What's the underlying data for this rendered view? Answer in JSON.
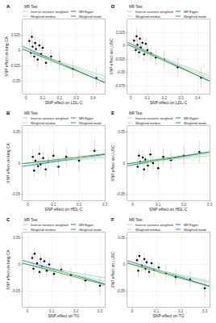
{
  "chart_data": [
    {
      "type": "scatter",
      "title": "A",
      "x_label": "SNP effect on LDL-C",
      "y_label": "SNP effect on lung CA",
      "legend_title": "MR Test",
      "x": [
        0.02,
        0.03,
        0.035,
        0.04,
        0.05,
        0.055,
        0.06,
        0.07,
        0.08,
        0.09,
        0.1,
        0.12,
        0.15,
        0.2,
        0.28,
        0.42
      ],
      "values": [
        0.015,
        -0.004,
        0.022,
        0.006,
        -0.01,
        0.012,
        0.002,
        -0.015,
        0.008,
        -0.006,
        0.004,
        -0.02,
        -0.01,
        -0.018,
        -0.03,
        -0.045
      ],
      "x_err": [
        0.004,
        0.004,
        0.005,
        0.005,
        0.006,
        0.005,
        0.006,
        0.007,
        0.007,
        0.008,
        0.008,
        0.01,
        0.01,
        0.012,
        0.015,
        0.02
      ],
      "y_err": [
        0.01,
        0.008,
        0.012,
        0.009,
        0.01,
        0.011,
        0.009,
        0.012,
        0.01,
        0.011,
        0.01,
        0.012,
        0.013,
        0.014,
        0.015,
        0.016
      ],
      "xlim": [
        -0.02,
        0.47
      ],
      "ylim": [
        -0.07,
        0.05
      ],
      "xticks": [
        0,
        0.1,
        0.2,
        0.3,
        0.4
      ],
      "yticks": [
        -0.05,
        -0.025,
        0,
        0.025
      ],
      "grid": true,
      "series": [
        {
          "name": "Inverse variance weighted",
          "color": "#a6cee3",
          "slope": -0.09,
          "intercept": 0
        },
        {
          "name": "MR Egger",
          "color": "#1f78b4",
          "slope": -0.12,
          "intercept": 0.004
        },
        {
          "name": "Weighted median",
          "color": "#b2df8a",
          "slope": -0.1,
          "intercept": 0
        },
        {
          "name": "Weighted mode",
          "color": "#33a02c",
          "slope": -0.11,
          "intercept": 0
        }
      ]
    },
    {
      "type": "scatter",
      "title": "B",
      "x_label": "SNP effect on HDL-C",
      "y_label": "SNP effect on lung CA",
      "legend_title": "MR Test",
      "x": [
        0.02,
        0.025,
        0.03,
        0.04,
        0.045,
        0.05,
        0.06,
        0.07,
        0.08,
        0.1,
        0.12,
        0.15,
        0.2,
        0.26
      ],
      "values": [
        0.01,
        -0.012,
        0.004,
        -0.005,
        0.015,
        -0.002,
        0.008,
        -0.01,
        0.003,
        0.012,
        -0.006,
        0.01,
        0.004,
        0.02
      ],
      "x_err": [
        0.004,
        0.004,
        0.005,
        0.005,
        0.006,
        0.006,
        0.007,
        0.007,
        0.008,
        0.009,
        0.01,
        0.012,
        0.014,
        0.016
      ],
      "y_err": [
        0.012,
        0.01,
        0.011,
        0.012,
        0.013,
        0.01,
        0.011,
        0.012,
        0.012,
        0.013,
        0.014,
        0.015,
        0.016,
        0.018
      ],
      "xlim": [
        -0.02,
        0.3
      ],
      "ylim": [
        -0.06,
        0.06
      ],
      "xticks": [
        0,
        0.1,
        0.2,
        0.3
      ],
      "yticks": [
        -0.05,
        0,
        0.05
      ],
      "grid": true,
      "series": [
        {
          "name": "Inverse variance weighted",
          "color": "#a6cee3",
          "slope": 0.03,
          "intercept": 0
        },
        {
          "name": "MR Egger",
          "color": "#1f78b4",
          "slope": 0.06,
          "intercept": -0.004
        },
        {
          "name": "Weighted median",
          "color": "#b2df8a",
          "slope": 0.04,
          "intercept": 0
        },
        {
          "name": "Weighted mode",
          "color": "#33a02c",
          "slope": 0.05,
          "intercept": 0
        }
      ]
    },
    {
      "type": "scatter",
      "title": "C",
      "x_label": "SNP effect on TG",
      "y_label": "SNP effect on lung CA",
      "legend_title": "MR Test",
      "x": [
        0.02,
        0.025,
        0.03,
        0.04,
        0.05,
        0.055,
        0.06,
        0.07,
        0.08,
        0.09,
        0.11,
        0.14,
        0.18,
        0.24,
        0.3
      ],
      "values": [
        0.012,
        -0.008,
        0.02,
        0.002,
        -0.014,
        0.01,
        -0.004,
        0.006,
        -0.012,
        0.0,
        -0.018,
        -0.01,
        -0.02,
        -0.03,
        -0.04
      ],
      "x_err": [
        0.004,
        0.004,
        0.005,
        0.005,
        0.006,
        0.006,
        0.006,
        0.007,
        0.008,
        0.008,
        0.009,
        0.011,
        0.013,
        0.015,
        0.018
      ],
      "y_err": [
        0.011,
        0.01,
        0.012,
        0.011,
        0.012,
        0.01,
        0.011,
        0.012,
        0.012,
        0.013,
        0.013,
        0.014,
        0.015,
        0.016,
        0.018
      ],
      "xlim": [
        -0.02,
        0.32
      ],
      "ylim": [
        -0.08,
        0.06
      ],
      "xticks": [
        0,
        0.1,
        0.2,
        0.3
      ],
      "yticks": [
        -0.05,
        0,
        0.05
      ],
      "grid": true,
      "series": [
        {
          "name": "Inverse variance weighted",
          "color": "#a6cee3",
          "slope": -0.08,
          "intercept": 0
        },
        {
          "name": "MR Egger",
          "color": "#1f78b4",
          "slope": -0.13,
          "intercept": 0.005
        },
        {
          "name": "Weighted median",
          "color": "#b2df8a",
          "slope": -0.1,
          "intercept": 0
        },
        {
          "name": "Weighted mode",
          "color": "#33a02c",
          "slope": -0.12,
          "intercept": 0
        }
      ]
    },
    {
      "type": "scatter",
      "title": "D",
      "x_label": "SNP effect on LDL-C",
      "y_label": "SNP effect on LUSC",
      "legend_title": "MR Test",
      "x": [
        0.02,
        0.03,
        0.035,
        0.04,
        0.05,
        0.055,
        0.06,
        0.07,
        0.08,
        0.09,
        0.1,
        0.12,
        0.15,
        0.2,
        0.28,
        0.42
      ],
      "values": [
        0.01,
        -0.008,
        0.018,
        0.002,
        -0.012,
        0.014,
        -0.003,
        0.006,
        -0.016,
        0.004,
        -0.008,
        -0.014,
        -0.022,
        -0.025,
        -0.04,
        -0.06
      ],
      "x_err": [
        0.004,
        0.004,
        0.005,
        0.005,
        0.006,
        0.005,
        0.006,
        0.007,
        0.007,
        0.008,
        0.008,
        0.01,
        0.01,
        0.012,
        0.015,
        0.02
      ],
      "y_err": [
        0.012,
        0.01,
        0.013,
        0.011,
        0.012,
        0.013,
        0.011,
        0.012,
        0.013,
        0.012,
        0.012,
        0.014,
        0.015,
        0.016,
        0.018,
        0.02
      ],
      "xlim": [
        -0.02,
        0.47
      ],
      "ylim": [
        -0.09,
        0.05
      ],
      "xticks": [
        0,
        0.1,
        0.2,
        0.3,
        0.4
      ],
      "yticks": [
        -0.075,
        -0.05,
        -0.025,
        0,
        0.025
      ],
      "grid": true,
      "series": [
        {
          "name": "Inverse variance weighted",
          "color": "#a6cee3",
          "slope": -0.12,
          "intercept": 0
        },
        {
          "name": "MR Egger",
          "color": "#1f78b4",
          "slope": -0.15,
          "intercept": 0.004
        },
        {
          "name": "Weighted median",
          "color": "#b2df8a",
          "slope": -0.13,
          "intercept": 0
        },
        {
          "name": "Weighted mode",
          "color": "#33a02c",
          "slope": -0.14,
          "intercept": 0
        }
      ]
    },
    {
      "type": "scatter",
      "title": "E",
      "x_label": "SNP effect on HDL-C",
      "y_label": "SNP effect on LUSC",
      "legend_title": "MR Test",
      "x": [
        0.02,
        0.025,
        0.03,
        0.04,
        0.045,
        0.05,
        0.06,
        0.07,
        0.08,
        0.1,
        0.12,
        0.15,
        0.2,
        0.26
      ],
      "values": [
        -0.006,
        0.012,
        0.002,
        0.009,
        -0.01,
        0.006,
        -0.004,
        0.014,
        0.0,
        -0.008,
        0.01,
        0.005,
        0.012,
        0.018
      ],
      "x_err": [
        0.004,
        0.004,
        0.005,
        0.005,
        0.006,
        0.006,
        0.007,
        0.007,
        0.008,
        0.009,
        0.01,
        0.012,
        0.014,
        0.016
      ],
      "y_err": [
        0.012,
        0.01,
        0.011,
        0.012,
        0.013,
        0.01,
        0.011,
        0.012,
        0.012,
        0.013,
        0.014,
        0.015,
        0.016,
        0.018
      ],
      "xlim": [
        -0.02,
        0.3
      ],
      "ylim": [
        -0.06,
        0.06
      ],
      "xticks": [
        0,
        0.1,
        0.2,
        0.3
      ],
      "yticks": [
        -0.05,
        0,
        0.05
      ],
      "grid": true,
      "series": [
        {
          "name": "Inverse variance weighted",
          "color": "#a6cee3",
          "slope": 0.05,
          "intercept": 0
        },
        {
          "name": "MR Egger",
          "color": "#1f78b4",
          "slope": 0.07,
          "intercept": -0.003
        },
        {
          "name": "Weighted median",
          "color": "#b2df8a",
          "slope": 0.04,
          "intercept": 0
        },
        {
          "name": "Weighted mode",
          "color": "#33a02c",
          "slope": 0.06,
          "intercept": 0
        }
      ]
    },
    {
      "type": "scatter",
      "title": "F",
      "x_label": "SNP effect on TG",
      "y_label": "SNP effect on LUSC",
      "legend_title": "MR Test",
      "x": [
        0.02,
        0.025,
        0.03,
        0.04,
        0.05,
        0.055,
        0.06,
        0.07,
        0.08,
        0.09,
        0.11,
        0.14,
        0.18,
        0.24,
        0.3
      ],
      "values": [
        0.008,
        -0.012,
        0.016,
        -0.002,
        0.01,
        -0.008,
        0.004,
        -0.014,
        0.002,
        -0.01,
        -0.006,
        -0.016,
        -0.024,
        -0.028,
        -0.045
      ],
      "x_err": [
        0.004,
        0.004,
        0.005,
        0.005,
        0.006,
        0.006,
        0.006,
        0.007,
        0.008,
        0.008,
        0.009,
        0.011,
        0.013,
        0.015,
        0.018
      ],
      "y_err": [
        0.011,
        0.01,
        0.012,
        0.011,
        0.012,
        0.01,
        0.011,
        0.012,
        0.012,
        0.013,
        0.013,
        0.014,
        0.015,
        0.016,
        0.018
      ],
      "xlim": [
        -0.02,
        0.32
      ],
      "ylim": [
        -0.08,
        0.06
      ],
      "xticks": [
        0,
        0.1,
        0.2,
        0.3
      ],
      "yticks": [
        -0.05,
        0,
        0.05
      ],
      "grid": true,
      "series": [
        {
          "name": "Inverse variance weighted",
          "color": "#a6cee3",
          "slope": -0.1,
          "intercept": 0
        },
        {
          "name": "MR Egger",
          "color": "#1f78b4",
          "slope": -0.14,
          "intercept": 0.004
        },
        {
          "name": "Weighted median",
          "color": "#b2df8a",
          "slope": -0.11,
          "intercept": 0
        },
        {
          "name": "Weighted mode",
          "color": "#33a02c",
          "slope": -0.13,
          "intercept": 0
        }
      ]
    }
  ]
}
